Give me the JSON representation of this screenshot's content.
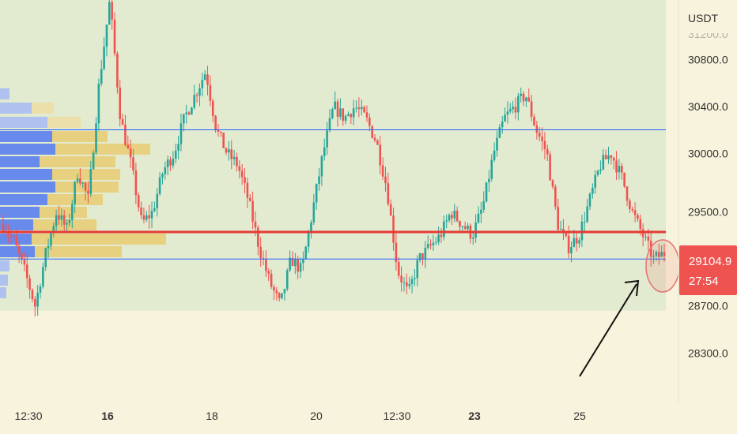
{
  "chart_data": {
    "type": "candlestick",
    "currency_label": "USDT",
    "y_axis": {
      "ticks": [
        28300,
        28700,
        29500,
        30000,
        30400,
        30800
      ],
      "tick_labels": [
        "28300.0",
        "28700.0",
        "29500.0",
        "30000.0",
        "30400.0",
        "30800.0"
      ],
      "partial_top_label": "31200.0",
      "range": [
        28000,
        31300
      ]
    },
    "x_axis": {
      "ticks": [
        {
          "label": "12:30",
          "bold": false
        },
        {
          "label": "16",
          "bold": true
        },
        {
          "label": "18",
          "bold": false
        },
        {
          "label": "20",
          "bold": false
        },
        {
          "label": "12:30",
          "bold": false
        },
        {
          "label": "23",
          "bold": true
        },
        {
          "label": "25",
          "bold": false
        }
      ]
    },
    "current_price": {
      "value": 29104.9,
      "label": "29104.9",
      "countdown": "27:54"
    },
    "levels": {
      "resistance": 30200,
      "support_red": 29330,
      "support_blue": 29100,
      "value_area_low": 28660
    },
    "price_path": [
      [
        0,
        29400
      ],
      [
        3,
        29250
      ],
      [
        5,
        29000
      ],
      [
        7,
        28700
      ],
      [
        9,
        29150
      ],
      [
        11,
        29500
      ],
      [
        13,
        29350
      ],
      [
        15,
        29850
      ],
      [
        17,
        29600
      ],
      [
        19,
        30600
      ],
      [
        21,
        31300
      ],
      [
        23,
        30300
      ],
      [
        25,
        29900
      ],
      [
        27,
        29400
      ],
      [
        29,
        29500
      ],
      [
        31,
        29850
      ],
      [
        33,
        30000
      ],
      [
        35,
        30300
      ],
      [
        37,
        30500
      ],
      [
        39,
        30700
      ],
      [
        41,
        30200
      ],
      [
        43,
        30000
      ],
      [
        45,
        29900
      ],
      [
        47,
        29600
      ],
      [
        49,
        29200
      ],
      [
        51,
        28900
      ],
      [
        53,
        28700
      ],
      [
        55,
        29100
      ],
      [
        57,
        29000
      ],
      [
        59,
        29500
      ],
      [
        61,
        30000
      ],
      [
        63,
        30400
      ],
      [
        65,
        30300
      ],
      [
        67,
        30400
      ],
      [
        69,
        30300
      ],
      [
        71,
        30100
      ],
      [
        73,
        29700
      ],
      [
        75,
        29000
      ],
      [
        77,
        28800
      ],
      [
        79,
        29100
      ],
      [
        81,
        29200
      ],
      [
        83,
        29300
      ],
      [
        85,
        29500
      ],
      [
        87,
        29400
      ],
      [
        89,
        29300
      ],
      [
        91,
        29550
      ],
      [
        93,
        30000
      ],
      [
        95,
        30300
      ],
      [
        97,
        30400
      ],
      [
        99,
        30500
      ],
      [
        101,
        30200
      ],
      [
        103,
        30000
      ],
      [
        105,
        29400
      ],
      [
        107,
        29200
      ],
      [
        109,
        29300
      ],
      [
        111,
        29600
      ],
      [
        113,
        29900
      ],
      [
        115,
        30000
      ],
      [
        117,
        29800
      ],
      [
        119,
        29500
      ],
      [
        121,
        29300
      ],
      [
        123,
        29100
      ],
      [
        125,
        29150
      ]
    ],
    "annotations": [
      "arrow pointing to current candle",
      "circle highlighting current candle"
    ]
  },
  "colors": {
    "up": "#26a69a",
    "down": "#ef5350",
    "blue_line": "#2962ff",
    "red_line": "#e53935",
    "value_area": "#e2ead0",
    "profile_blue": "#5b7ff0",
    "profile_blue_light": "#a9bdf2",
    "profile_yellow": "#e8c96a",
    "profile_yellow_light": "#efdca0"
  }
}
